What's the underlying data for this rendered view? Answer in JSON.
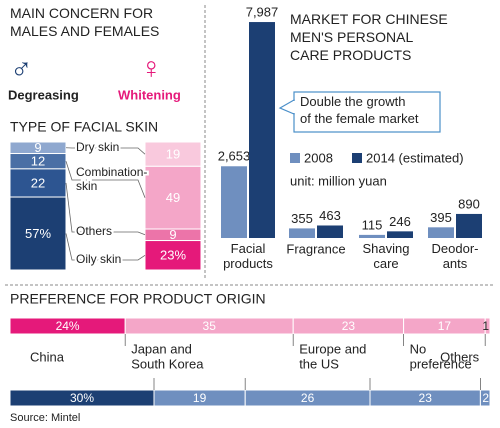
{
  "concern": {
    "title": "MAIN CONCERN FOR\nMALES AND FEMALES",
    "items": [
      {
        "symbol": "♂",
        "label": "Degreasing",
        "color": "#1c3f73"
      },
      {
        "symbol": "♀",
        "label": "Whitening",
        "color": "#e5197a"
      }
    ]
  },
  "chart_data": [
    {
      "type": "stacked-bar",
      "title": "TYPE OF FACIAL SKIN",
      "categories": [
        "Dry skin",
        "Combination-\nskin",
        "Others",
        "Oily skin"
      ],
      "ylim": [
        0,
        100
      ],
      "series": [
        {
          "colors": [
            "#8fa8cf",
            "#4a6fa5",
            "#2d5591",
            "#1c3f73"
          ],
          "values": [
            9,
            12,
            22,
            57
          ],
          "value_labels": [
            "9",
            "12",
            "22",
            "57%"
          ]
        },
        {
          "colors": [
            "#f9c9dd",
            "#f4a6c8",
            "#ec74a9",
            "#e5197a"
          ],
          "values": [
            19,
            49,
            9,
            23
          ],
          "value_labels": [
            "19",
            "49",
            "9",
            "23%"
          ]
        }
      ]
    },
    {
      "type": "bar",
      "title": "MARKET FOR CHINESE\nMEN'S PERSONAL\nCARE PRODUCTS",
      "categories": [
        "Facial\nproducts",
        "Fragrance",
        "Shaving\ncare",
        "Deodor-\nants"
      ],
      "ylim": [
        0,
        8000
      ],
      "series": [
        {
          "name": "2008",
          "color": "#6f8fbf",
          "values": [
            2653,
            355,
            115,
            395
          ],
          "value_labels": [
            "2,653",
            "355",
            "115",
            "395"
          ]
        },
        {
          "name": "2014 (estimated)",
          "color": "#1c3f73",
          "values": [
            7987,
            463,
            246,
            890
          ],
          "value_labels": [
            "7,987",
            "463",
            "246",
            "890"
          ]
        }
      ],
      "annotation": "Double the growth\nof the female market",
      "unit": "unit: million yuan"
    },
    {
      "type": "stacked-barh",
      "title": "PREFERENCE FOR PRODUCT ORIGIN",
      "categories": [
        "China",
        "Japan and\nSouth Korea",
        "Europe and\nthe US",
        "No\npreference",
        "Others"
      ],
      "xlim": [
        0,
        100
      ],
      "series": [
        {
          "colors": [
            "#e5197a",
            "#f4a6c8",
            "#f4a6c8",
            "#f4a6c8",
            "#f4a6c8"
          ],
          "values": [
            24,
            35,
            23,
            17,
            1
          ],
          "value_labels": [
            "24%",
            "35",
            "23",
            "17",
            "1"
          ]
        },
        {
          "colors": [
            "#1c3f73",
            "#6f8fbf",
            "#6f8fbf",
            "#6f8fbf",
            "#6f8fbf"
          ],
          "values": [
            30,
            19,
            26,
            23,
            2
          ],
          "value_labels": [
            "30%",
            "19",
            "26",
            "23",
            "2"
          ]
        }
      ]
    }
  ],
  "source": "Source: Mintel"
}
